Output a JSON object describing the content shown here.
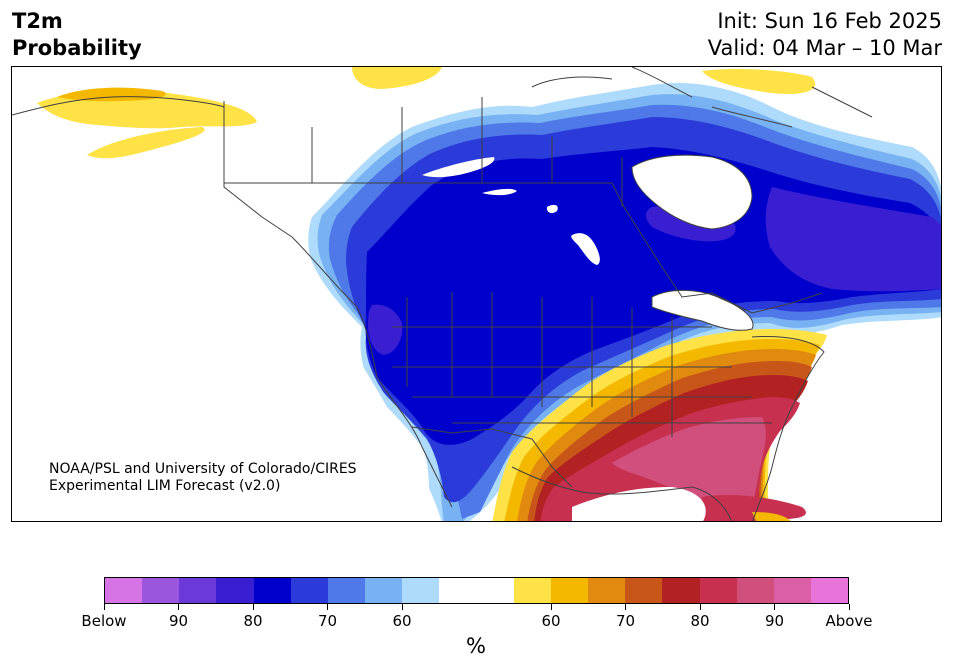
{
  "title": {
    "line1": "T2m",
    "line2": "Probability"
  },
  "dates": {
    "init": "Init: Sun 16 Feb 2025",
    "valid": "Valid: 04 Mar – 10 Mar"
  },
  "credit": {
    "line1": "NOAA/PSL and University of Colorado/CIRES",
    "line2": "Experimental LIM Forecast (v2.0)"
  },
  "colorbar": {
    "colors": [
      "#d674e6",
      "#9a56dc",
      "#6a39d8",
      "#3a1fd2",
      "#0000cc",
      "#2b3bd9",
      "#4f78e8",
      "#78b2f2",
      "#aedbfb",
      "#ffffff",
      "#ffffff",
      "#ffe245",
      "#f5b800",
      "#e08a10",
      "#c85618",
      "#b22222",
      "#c8304f",
      "#d14f7c",
      "#da5fa6",
      "#e874d9"
    ],
    "ticks": [
      "Below",
      "90",
      "80",
      "70",
      "60",
      "60",
      "70",
      "80",
      "90",
      "Above"
    ],
    "units": "%"
  },
  "map_colors": {
    "land": "#ffffff",
    "border": "#404040",
    "below_light": "#aedbfb",
    "below_mid": "#78b2f2",
    "below_blue": "#4f78e8",
    "below_strong": "#2b3bd9",
    "below_deep": "#0000cc",
    "below_purple": "#3a1fd2",
    "above_yellow": "#ffe245",
    "above_gold": "#f5b800",
    "above_orange": "#e08a10",
    "above_rust": "#c85618",
    "above_red": "#b22222",
    "above_crimson": "#c8304f",
    "above_pink": "#d14f7c"
  }
}
